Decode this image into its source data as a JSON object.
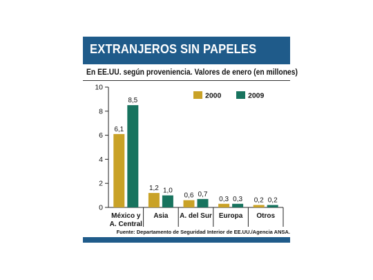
{
  "header": {
    "title": "EXTRANJEROS SIN PAPELES",
    "subtitle": "En EE.UU. según proveniencia. Valores de enero (en millones)"
  },
  "footer": {
    "source": "Fuente: Departamento de Seguridad Interior de EE.UU./Agencia ANSA."
  },
  "colors": {
    "brand": "#1f5b8a",
    "series_2000": "#c9a227",
    "series_2009": "#17735e"
  },
  "chart_data": {
    "type": "bar",
    "title": "EXTRANJEROS SIN PAPELES",
    "subtitle": "En EE.UU. según proveniencia. Valores de enero (en millones)",
    "xlabel": "",
    "ylabel": "",
    "ylim": [
      0,
      10
    ],
    "yticks": [
      0,
      2,
      4,
      6,
      8,
      10
    ],
    "ytick_labels": [
      "0",
      "2",
      "4",
      "6",
      "8",
      "10"
    ],
    "grid": false,
    "legend_position": "top-right",
    "categories": [
      [
        "México y",
        "A. Central"
      ],
      [
        "Asia"
      ],
      [
        "A. del Sur"
      ],
      [
        "Europa"
      ],
      [
        "Otros"
      ]
    ],
    "series": [
      {
        "name": "2000",
        "color": "#c9a227",
        "values": [
          6.1,
          1.2,
          0.6,
          0.3,
          0.2
        ],
        "labels": [
          "6,1",
          "1,2",
          "0,6",
          "0,3",
          "0,2"
        ]
      },
      {
        "name": "2009",
        "color": "#17735e",
        "values": [
          8.5,
          1.0,
          0.7,
          0.3,
          0.2
        ],
        "labels": [
          "8,5",
          "1,0",
          "0,7",
          "0,3",
          "0,2"
        ]
      }
    ]
  }
}
